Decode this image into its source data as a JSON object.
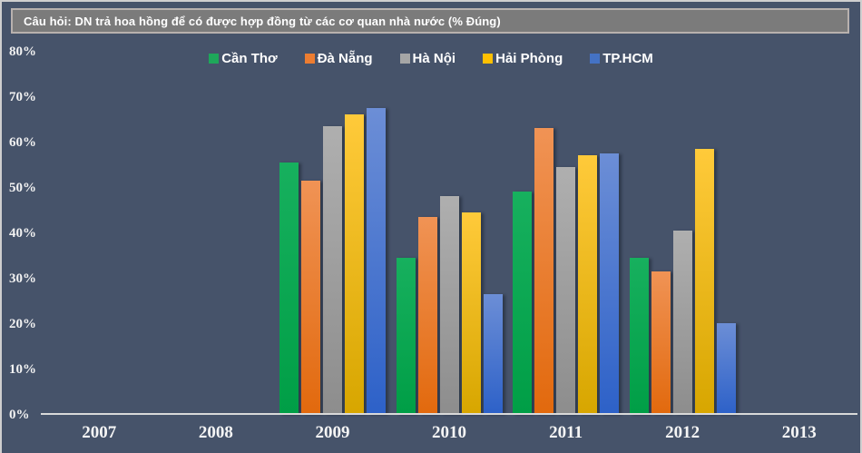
{
  "chart_data": {
    "type": "bar",
    "title": "Câu hỏi: DN trả hoa hồng để có được hợp đồng từ các cơ quan nhà nước (% Đúng)",
    "categories": [
      "2007",
      "2008",
      "2009",
      "2010",
      "2011",
      "2012",
      "2013"
    ],
    "series": [
      {
        "name": "Cần Thơ",
        "color": "#1EA75A",
        "color_top": "#17B05E",
        "color_bottom": "#009E46",
        "values": [
          null,
          null,
          55.5,
          34.5,
          49.0,
          34.5,
          null
        ]
      },
      {
        "name": "Đà Nẵng",
        "color": "#ED7D31",
        "color_top": "#F09355",
        "color_bottom": "#E2690D",
        "values": [
          null,
          null,
          51.5,
          43.5,
          63.0,
          31.5,
          null
        ]
      },
      {
        "name": "Hà Nội",
        "color": "#A6A6A6",
        "color_top": "#AFAFAF",
        "color_bottom": "#8D8D8D",
        "values": [
          null,
          null,
          63.5,
          48.0,
          54.5,
          40.5,
          null
        ]
      },
      {
        "name": "Hải Phòng",
        "color": "#FFC000",
        "color_top": "#FFCA3A",
        "color_bottom": "#D7A600",
        "values": [
          null,
          null,
          66.0,
          44.5,
          57.0,
          58.5,
          null
        ]
      },
      {
        "name": "TP.HCM",
        "color": "#4472C4",
        "color_top": "#6C8ED6",
        "color_bottom": "#2D61C8",
        "values": [
          null,
          null,
          67.5,
          26.5,
          57.5,
          20.0,
          null
        ]
      }
    ],
    "yticks": [
      "80%",
      "70%",
      "60%",
      "50%",
      "40%",
      "30%",
      "20%",
      "10%",
      "0%"
    ],
    "ylim": [
      0,
      80
    ],
    "grid": false,
    "legend_position": "top",
    "background_color": "#46536A",
    "title_bar_color": "#7B7B7B",
    "axis_color": "#D9D9D9",
    "text_color": "#FFFFFF"
  }
}
